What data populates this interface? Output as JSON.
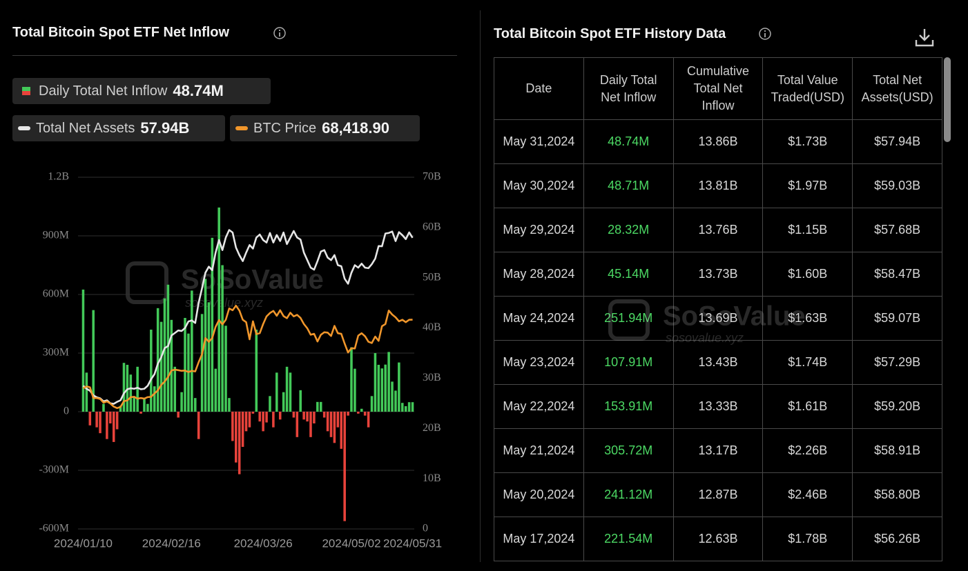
{
  "left_panel": {
    "title": "Total Bitcoin Spot ETF Net Inflow"
  },
  "watermark": {
    "brand": "SoSoValue",
    "url": "sosovalue.xyz"
  },
  "chart_data": {
    "type": "combo",
    "categories": [
      "2024/01/10",
      null,
      null,
      null,
      null,
      null,
      null,
      null,
      null,
      null,
      null,
      null,
      null,
      null,
      null,
      null,
      null,
      null,
      null,
      null,
      null,
      null,
      null,
      null,
      null,
      null,
      "2024/02/16",
      null,
      null,
      null,
      null,
      null,
      null,
      null,
      null,
      null,
      null,
      null,
      null,
      null,
      null,
      null,
      null,
      null,
      null,
      null,
      null,
      null,
      null,
      null,
      null,
      null,
      null,
      "2024/03/26",
      null,
      null,
      null,
      null,
      null,
      null,
      null,
      null,
      null,
      null,
      null,
      null,
      null,
      null,
      null,
      null,
      null,
      null,
      null,
      null,
      null,
      null,
      null,
      null,
      null,
      "2024/05/02",
      null,
      null,
      null,
      null,
      null,
      null,
      null,
      null,
      null,
      null,
      null,
      null,
      null,
      null,
      null,
      null,
      null,
      "2024/05/31"
    ],
    "series": [
      {
        "name": "Daily Total Net Inflow",
        "latest": "48.74M",
        "type": "bar",
        "color": "#43c959",
        "negative_color": "#e8433b",
        "axis": "y",
        "values": [
          625,
          200,
          -70,
          520,
          -80,
          -110,
          40,
          -140,
          -60,
          -155,
          -90,
          30,
          250,
          240,
          190,
          80,
          230,
          -10,
          70,
          40,
          420,
          130,
          530,
          460,
          580,
          650,
          470,
          230,
          -30,
          100,
          480,
          400,
          620,
          70,
          -140,
          500,
          680,
          560,
          890,
          220,
          1045,
          750,
          440,
          70,
          -150,
          -260,
          -320,
          -180,
          -100,
          -80,
          -10,
          420,
          -50,
          -100,
          -55,
          80,
          -80,
          200,
          -40,
          100,
          230,
          200,
          -30,
          -130,
          110,
          -40,
          -50,
          -130,
          -60,
          50,
          50,
          -30,
          -100,
          -130,
          -160,
          -80,
          -190,
          -560,
          -20,
          330,
          220,
          -10,
          15,
          -20,
          -80,
          80,
          300,
          240,
          221.54,
          241.12,
          305.72,
          153.91,
          107.91,
          251.94,
          45.14,
          28.32,
          48.71,
          48.74
        ]
      },
      {
        "name": "Total Net Assets",
        "latest": "57.94B",
        "type": "line",
        "color": "#e6e6e6",
        "axis": "y2",
        "values": [
          28.5,
          27.9,
          27.5,
          26.6,
          26.2,
          26.0,
          25.4,
          25.6,
          25.0,
          24.9,
          25.3,
          25.6,
          27.0,
          27.8,
          28.0,
          27.9,
          28.1,
          27.8,
          27.9,
          28.5,
          29.8,
          30.8,
          32.9,
          34.2,
          36.0,
          36.4,
          38.5,
          39.0,
          39.5,
          39.4,
          40.0,
          41.3,
          41.5,
          41.0,
          45.0,
          47.9,
          51.0,
          52.2,
          51.5,
          55.0,
          57.5,
          55.5,
          58.0,
          59.5,
          59.0,
          56.0,
          54.5,
          53.3,
          55.0,
          56.5,
          55.8,
          58.0,
          58.6,
          57.5,
          57.0,
          58.9,
          57.0,
          58.5,
          57.3,
          59.0,
          56.7,
          58.0,
          59.3,
          58.0,
          57.6,
          55.0,
          53.5,
          52.0,
          51.6,
          53.3,
          55.2,
          55.5,
          54.0,
          53.5,
          54.5,
          52.5,
          52.3,
          49.8,
          48.8,
          51.0,
          52.5,
          52.0,
          52.8,
          52.0,
          51.9,
          52.7,
          53.8,
          56.3,
          56.26,
          58.8,
          58.91,
          59.2,
          57.29,
          59.07,
          58.47,
          57.68,
          59.03,
          57.94
        ]
      },
      {
        "name": "BTC Price",
        "latest": "68,418.90",
        "type": "line",
        "color": "#f0962b",
        "axis": "y3",
        "values": [
          46000,
          46600,
          46300,
          42800,
          42800,
          42500,
          41300,
          41700,
          41000,
          40000,
          39500,
          39900,
          41800,
          42000,
          43100,
          43200,
          42600,
          42800,
          42600,
          43100,
          43200,
          44300,
          45300,
          47100,
          48200,
          49700,
          51800,
          52100,
          51900,
          51700,
          51800,
          51300,
          51700,
          51500,
          54500,
          57100,
          62400,
          61200,
          62400,
          66100,
          68300,
          66900,
          68400,
          72100,
          71500,
          73000,
          71400,
          68400,
          67600,
          62000,
          67900,
          63700,
          64000,
          67000,
          69500,
          70600,
          71300,
          69700,
          71500,
          69600,
          68900,
          70700,
          69500,
          70000,
          69000,
          67000,
          65600,
          63500,
          63800,
          61300,
          63500,
          64300,
          64200,
          63100,
          66400,
          64000,
          63800,
          60600,
          57700,
          59100,
          59000,
          63200,
          64000,
          63000,
          61200,
          60800,
          62900,
          61500,
          66300,
          67000,
          71400,
          70100,
          69200,
          67900,
          68400,
          67600,
          68400,
          68418.9
        ]
      }
    ],
    "ylim": [
      -600,
      1200
    ],
    "yticks": [
      {
        "value": 1200,
        "label": "1.2B"
      },
      {
        "value": 900,
        "label": "900M"
      },
      {
        "value": 600,
        "label": "600M"
      },
      {
        "value": 300,
        "label": "300M"
      },
      0,
      {
        "value": -300,
        "label": "-300M"
      },
      {
        "value": -600,
        "label": "-600M"
      }
    ],
    "y2lim": [
      0,
      70
    ],
    "y2ticks": [
      {
        "value": 70,
        "label": "70B"
      },
      {
        "value": 60,
        "label": "60B"
      },
      {
        "value": 50,
        "label": "50B"
      },
      {
        "value": 40,
        "label": "40B"
      },
      {
        "value": 30,
        "label": "30B"
      },
      {
        "value": 20,
        "label": "20B"
      },
      {
        "value": 10,
        "label": "10B"
      },
      0
    ],
    "y3lim": [
      0,
      115000
    ],
    "grid": true
  },
  "table": {
    "title": "Total Bitcoin Spot ETF History Data",
    "headers": [
      "Date",
      "Daily Total Net Inflow",
      "Cumulative Total Net Inflow",
      "Total Value Traded(USD)",
      "Total Net Assets(USD)"
    ],
    "rows": [
      [
        "May 31,2024",
        "48.74M",
        "13.86B",
        "$1.73B",
        "$57.94B"
      ],
      [
        "May 30,2024",
        "48.71M",
        "13.81B",
        "$1.97B",
        "$59.03B"
      ],
      [
        "May 29,2024",
        "28.32M",
        "13.76B",
        "$1.15B",
        "$57.68B"
      ],
      [
        "May 28,2024",
        "45.14M",
        "13.73B",
        "$1.60B",
        "$58.47B"
      ],
      [
        "May 24,2024",
        "251.94M",
        "13.69B",
        "$1.63B",
        "$59.07B"
      ],
      [
        "May 23,2024",
        "107.91M",
        "13.43B",
        "$1.74B",
        "$57.29B"
      ],
      [
        "May 22,2024",
        "153.91M",
        "13.33B",
        "$1.61B",
        "$59.20B"
      ],
      [
        "May 21,2024",
        "305.72M",
        "13.17B",
        "$2.26B",
        "$58.91B"
      ],
      [
        "May 20,2024",
        "241.12M",
        "12.87B",
        "$2.46B",
        "$58.80B"
      ],
      [
        "May 17,2024",
        "221.54M",
        "12.63B",
        "$1.78B",
        "$56.26B"
      ]
    ]
  }
}
